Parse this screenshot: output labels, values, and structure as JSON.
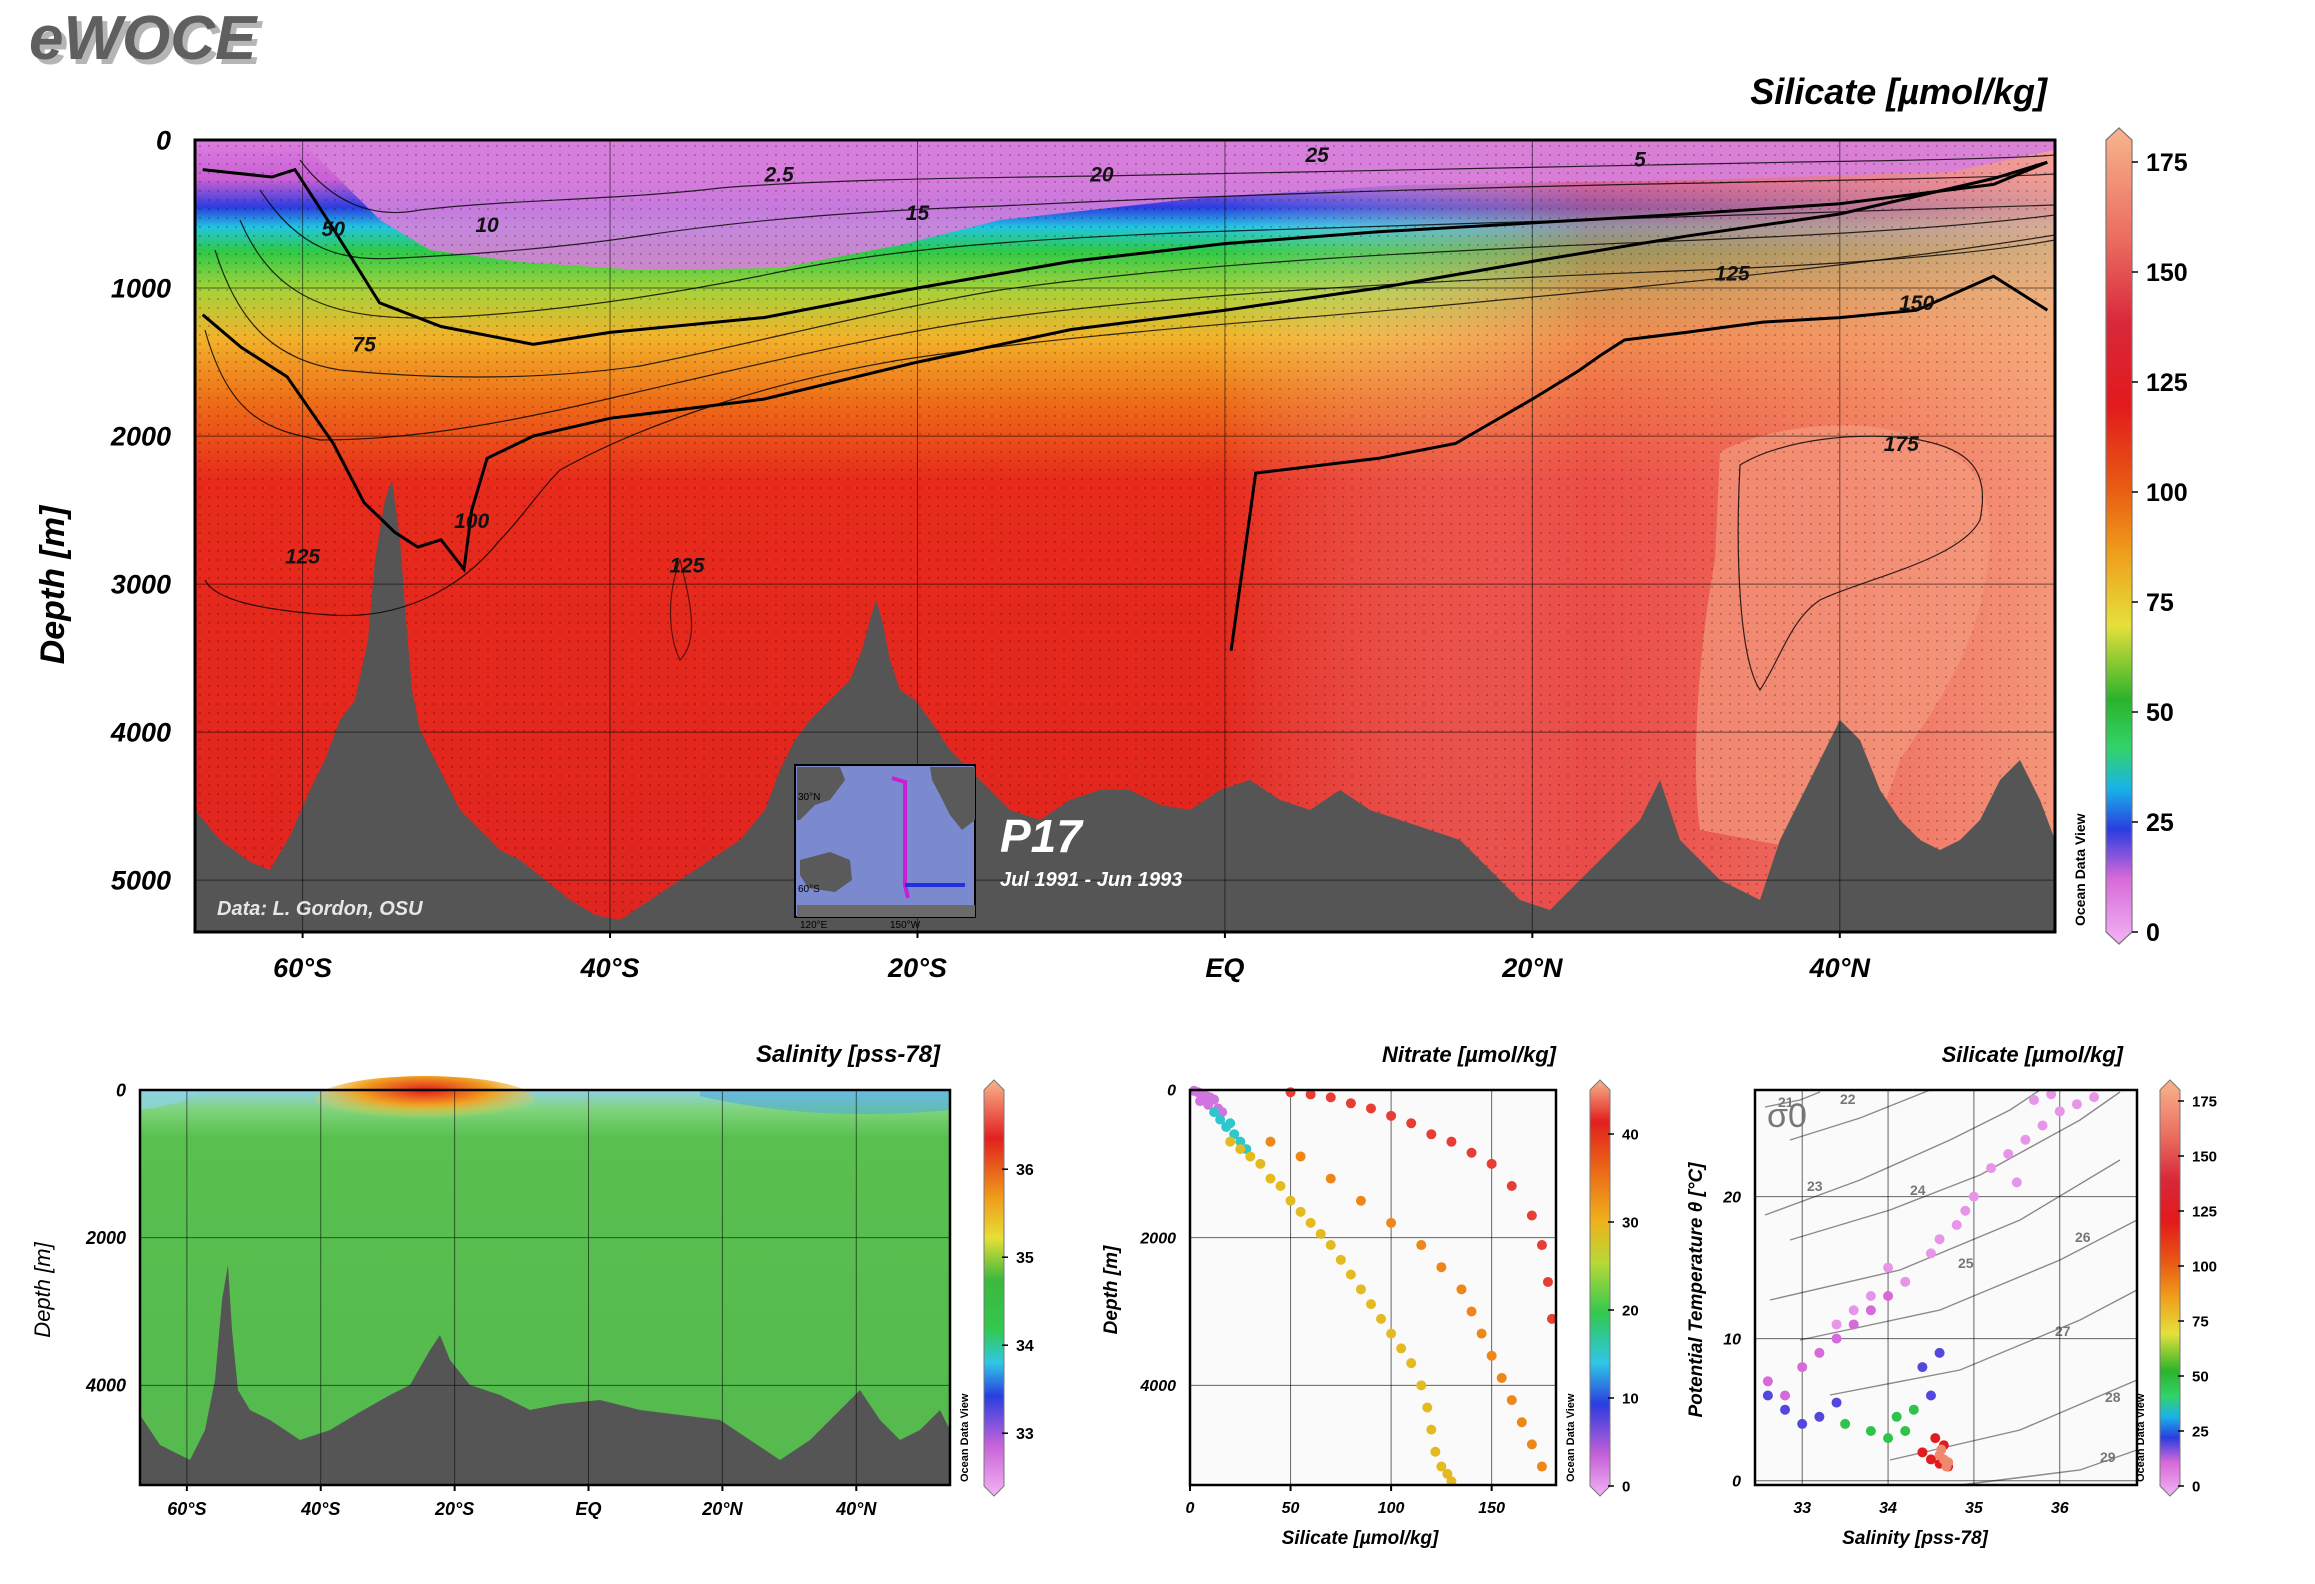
{
  "brand": "eWOCE",
  "odv_label": "Ocean Data View",
  "chart_data": [
    {
      "id": "silicate_section",
      "type": "heatmap",
      "title": "Silicate [µmol/kg]",
      "ylabel": "Depth [m]",
      "xlabel": "",
      "x_ticks": [
        "60°S",
        "40°S",
        "20°S",
        "EQ",
        "20°N",
        "40°N"
      ],
      "x_tick_values": [
        -60,
        -40,
        -20,
        0,
        20,
        40
      ],
      "xlim": [
        -67,
        54
      ],
      "y_ticks": [
        "0",
        "1000",
        "2000",
        "3000",
        "4000",
        "5000"
      ],
      "y_tick_values": [
        0,
        1000,
        2000,
        3000,
        4000,
        5000
      ],
      "ylim": [
        0,
        5350
      ],
      "y_reversed": true,
      "colorbar": {
        "ticks": [
          "0",
          "25",
          "50",
          "75",
          "100",
          "125",
          "150",
          "175"
        ],
        "tick_values": [
          0,
          25,
          50,
          75,
          100,
          125,
          150,
          175
        ],
        "range": [
          0,
          180
        ]
      },
      "contour_labels": [
        {
          "text": "2.5",
          "x": -29,
          "depth": 280
        },
        {
          "text": "5",
          "x": 27,
          "depth": 180
        },
        {
          "text": "10",
          "x": -48,
          "depth": 620
        },
        {
          "text": "15",
          "x": -20,
          "depth": 540
        },
        {
          "text": "20",
          "x": -8,
          "depth": 280
        },
        {
          "text": "25",
          "x": 6,
          "depth": 150
        },
        {
          "text": "50",
          "x": -58,
          "depth": 650
        },
        {
          "text": "75",
          "x": -56,
          "depth": 1430
        },
        {
          "text": "100",
          "x": -49,
          "depth": 2620
        },
        {
          "text": "125",
          "x": -60,
          "depth": 2860
        },
        {
          "text": "125",
          "x": -35,
          "depth": 2920
        },
        {
          "text": "125",
          "x": 33,
          "depth": 950
        },
        {
          "text": "150",
          "x": 45,
          "depth": 1150
        },
        {
          "text": "175",
          "x": 44,
          "depth": 2100
        }
      ],
      "bold_contours": [
        {
          "level": 50,
          "x": [
            -66.5,
            -62,
            -60.5,
            -58,
            -55,
            -51,
            -45,
            -40,
            -30,
            -20,
            -10,
            0,
            10,
            20,
            30,
            40,
            50,
            53.5
          ],
          "depth": [
            200,
            250,
            200,
            600,
            1100,
            1260,
            1380,
            1300,
            1200,
            1000,
            820,
            700,
            620,
            560,
            500,
            430,
            300,
            150
          ]
        },
        {
          "level": 100,
          "x": [
            -66.5,
            -64,
            -61,
            -58,
            -56,
            -54,
            -52.5,
            -51,
            -49.5,
            -49,
            -48,
            -45,
            -40,
            -30,
            -20,
            -10,
            0,
            10,
            20,
            30,
            40,
            50,
            53.5
          ],
          "depth": [
            1180,
            1400,
            1600,
            2050,
            2450,
            2650,
            2750,
            2700,
            2900,
            2500,
            2150,
            2000,
            1880,
            1750,
            1500,
            1280,
            1150,
            1000,
            820,
            650,
            500,
            260,
            150
          ]
        },
        {
          "level": 150,
          "x": [
            0.4,
            2,
            10,
            15,
            20,
            23,
            24.5,
            26,
            30,
            35,
            40,
            45,
            50,
            53.5
          ],
          "depth": [
            3450,
            2250,
            2150,
            2050,
            1750,
            1560,
            1450,
            1350,
            1300,
            1230,
            1200,
            1150,
            920,
            1150
          ]
        }
      ],
      "annotations": {
        "data_credit": "Data: L. Gordon, OSU",
        "cruise": "P17",
        "period": "Jul 1991 - Jun 1993"
      },
      "inset_map": {
        "labels": [
          "30°N",
          "60°S",
          "120°E",
          "150°W"
        ]
      }
    },
    {
      "id": "salinity_section",
      "type": "heatmap",
      "title": "Salinity [pss-78]",
      "ylabel": "Depth [m]",
      "x_ticks": [
        "60°S",
        "40°S",
        "20°S",
        "EQ",
        "20°N",
        "40°N"
      ],
      "x_tick_values": [
        -60,
        -40,
        -20,
        0,
        20,
        40
      ],
      "xlim": [
        -67,
        54
      ],
      "y_ticks": [
        "0",
        "2000",
        "4000"
      ],
      "y_tick_values": [
        0,
        2000,
        4000
      ],
      "ylim": [
        0,
        5350
      ],
      "y_reversed": true,
      "colorbar": {
        "ticks": [
          "33",
          "34",
          "35",
          "36"
        ],
        "tick_values": [
          33,
          34,
          35,
          36
        ],
        "range": [
          32.4,
          36.9
        ]
      }
    },
    {
      "id": "nitrate_scatter",
      "type": "scatter",
      "title": "Nitrate [µmol/kg]",
      "xlabel": "Silicate [µmol/kg]",
      "ylabel": "Depth [m]",
      "x_ticks": [
        "0",
        "50",
        "100",
        "150"
      ],
      "x_tick_values": [
        0,
        50,
        100,
        150
      ],
      "xlim": [
        0,
        182
      ],
      "y_ticks": [
        "0",
        "2000",
        "4000"
      ],
      "y_tick_values": [
        0,
        2000,
        4000
      ],
      "ylim": [
        0,
        5350
      ],
      "y_reversed": true,
      "colorbar": {
        "ticks": [
          "0",
          "10",
          "20",
          "30",
          "40"
        ],
        "tick_values": [
          0,
          10,
          20,
          30,
          40
        ],
        "range": [
          0,
          45
        ]
      },
      "series": [
        {
          "color_value": 3,
          "x": [
            2,
            4,
            6,
            8,
            10,
            12,
            5,
            9,
            14,
            16
          ],
          "y": [
            10,
            30,
            50,
            80,
            100,
            130,
            150,
            200,
            250,
            300
          ]
        },
        {
          "color_value": 15,
          "x": [
            12,
            15,
            18,
            22,
            25,
            20,
            28
          ],
          "y": [
            300,
            400,
            500,
            600,
            700,
            450,
            800
          ]
        },
        {
          "color_value": 29,
          "x": [
            20,
            30,
            40,
            50,
            60,
            70,
            80,
            90,
            100,
            110,
            115,
            118,
            120,
            122,
            125,
            128,
            130,
            105,
            95,
            85,
            75,
            65,
            55,
            45,
            35,
            25
          ],
          "y": [
            700,
            900,
            1200,
            1500,
            1800,
            2100,
            2500,
            2900,
            3300,
            3700,
            4000,
            4300,
            4600,
            4900,
            5100,
            5200,
            5300,
            3500,
            3100,
            2700,
            2300,
            1950,
            1650,
            1300,
            1000,
            800
          ]
        },
        {
          "color_value": 33,
          "x": [
            40,
            55,
            70,
            85,
            100,
            115,
            125,
            135,
            140,
            145,
            150,
            155,
            160,
            165,
            170,
            175
          ],
          "y": [
            700,
            900,
            1200,
            1500,
            1800,
            2100,
            2400,
            2700,
            3000,
            3300,
            3600,
            3900,
            4200,
            4500,
            4800,
            5100
          ]
        },
        {
          "color_value": 41,
          "x": [
            50,
            70,
            90,
            110,
            130,
            150,
            160,
            170,
            175,
            178,
            180,
            140,
            120,
            100,
            80,
            60
          ],
          "y": [
            30,
            100,
            250,
            450,
            700,
            1000,
            1300,
            1700,
            2100,
            2600,
            3100,
            850,
            600,
            350,
            180,
            60
          ]
        }
      ]
    },
    {
      "id": "ts_scatter",
      "type": "scatter",
      "title": "Silicate [µmol/kg]",
      "xlabel": "Salinity [pss-78]",
      "ylabel": "Potential Temperature θ [°C]",
      "x_ticks": [
        "33",
        "34",
        "35",
        "36"
      ],
      "x_tick_values": [
        33,
        34,
        35,
        36
      ],
      "xlim": [
        32.45,
        36.9
      ],
      "y_ticks": [
        "0",
        "10",
        "20"
      ],
      "y_tick_values": [
        0,
        10,
        20
      ],
      "ylim": [
        -0.3,
        27.5
      ],
      "sigma_label": "σ0",
      "isopycnal_labels": [
        "21",
        "22",
        "23",
        "24",
        "25",
        "26",
        "27",
        "28",
        "29"
      ],
      "colorbar": {
        "ticks": [
          "0",
          "25",
          "50",
          "75",
          "100",
          "125",
          "150",
          "175"
        ],
        "tick_values": [
          0,
          25,
          50,
          75,
          100,
          125,
          150,
          175
        ],
        "range": [
          0,
          180
        ]
      },
      "series": [
        {
          "color_value": 5,
          "x": [
            34.2,
            34.5,
            34.8,
            35.0,
            35.2,
            35.4,
            35.6,
            35.8,
            36.0,
            36.2,
            36.4,
            35.9,
            35.7,
            35.5,
            34.9,
            34.6,
            34.0,
            33.8,
            33.6,
            33.4
          ],
          "y": [
            14,
            16,
            18,
            20,
            22,
            23,
            24,
            25,
            26,
            26.5,
            27,
            27.2,
            26.8,
            21,
            19,
            17,
            15,
            13,
            12,
            11
          ]
        },
        {
          "color_value": 12,
          "x": [
            32.6,
            32.8,
            33.0,
            33.2,
            33.4,
            33.6,
            33.8,
            34.0
          ],
          "y": [
            7,
            6,
            8,
            9,
            10,
            11,
            12,
            13
          ]
        },
        {
          "color_value": 22,
          "x": [
            32.6,
            32.8,
            33.0,
            33.2,
            33.4,
            34.4,
            34.6,
            34.5
          ],
          "y": [
            6,
            5,
            4,
            4.5,
            5.5,
            8,
            9,
            6
          ]
        },
        {
          "color_value": 50,
          "x": [
            33.5,
            33.8,
            34.0,
            34.2,
            34.1,
            34.3
          ],
          "y": [
            4,
            3.5,
            3,
            3.5,
            4.5,
            5
          ]
        },
        {
          "color_value": 120,
          "x": [
            34.4,
            34.5,
            34.6,
            34.7,
            34.65,
            34.55
          ],
          "y": [
            2,
            1.5,
            1.2,
            1.0,
            2.5,
            3
          ]
        },
        {
          "color_value": 165,
          "x": [
            34.6,
            34.65,
            34.7,
            34.68,
            34.62
          ],
          "y": [
            1.8,
            1.5,
            1.3,
            1.0,
            2.2
          ]
        }
      ]
    }
  ]
}
